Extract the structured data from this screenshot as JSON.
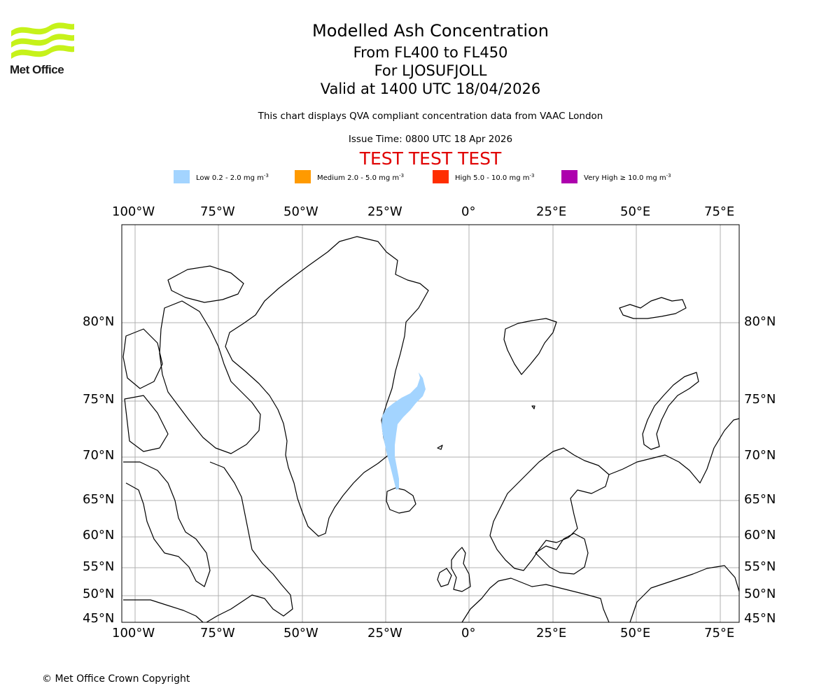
{
  "header": {
    "logo_text": "Met Office",
    "title": "Modelled Ash Concentration",
    "level_range": "From FL400 to FL450",
    "volcano": "For LJOSUFJOLL",
    "valid_time": "Valid at 1400 UTC 18/04/2026",
    "compliance_note": "This chart displays QVA compliant concentration data from VAAC London",
    "issue_time": "Issue Time: 0800 UTC 18 Apr 2026",
    "test_banner": "TEST TEST TEST"
  },
  "legend": {
    "unit_exp": "-3",
    "items": [
      {
        "label": "Low 0.2 - 2.0 mg m",
        "color": "#a3d4ff"
      },
      {
        "label": "Medium 2.0 - 5.0 mg m",
        "color": "#ff9a00"
      },
      {
        "label": "High 5.0 - 10.0 mg m",
        "color": "#ff2e00"
      },
      {
        "label": "Very High  ≥  10.0 mg m",
        "color": "#ad00ad"
      }
    ]
  },
  "map": {
    "lon_labels": [
      "100°W",
      "75°W",
      "50°W",
      "25°W",
      "0°",
      "25°E",
      "50°E",
      "75°E"
    ],
    "lat_labels": [
      "80°N",
      "75°N",
      "70°N",
      "65°N",
      "60°N",
      "55°N",
      "50°N",
      "45°N"
    ],
    "ash_cloud_level": "Low",
    "grid_color": "#b0b0b0"
  },
  "footer": {
    "copyright": "© Met Office Crown Copyright"
  }
}
